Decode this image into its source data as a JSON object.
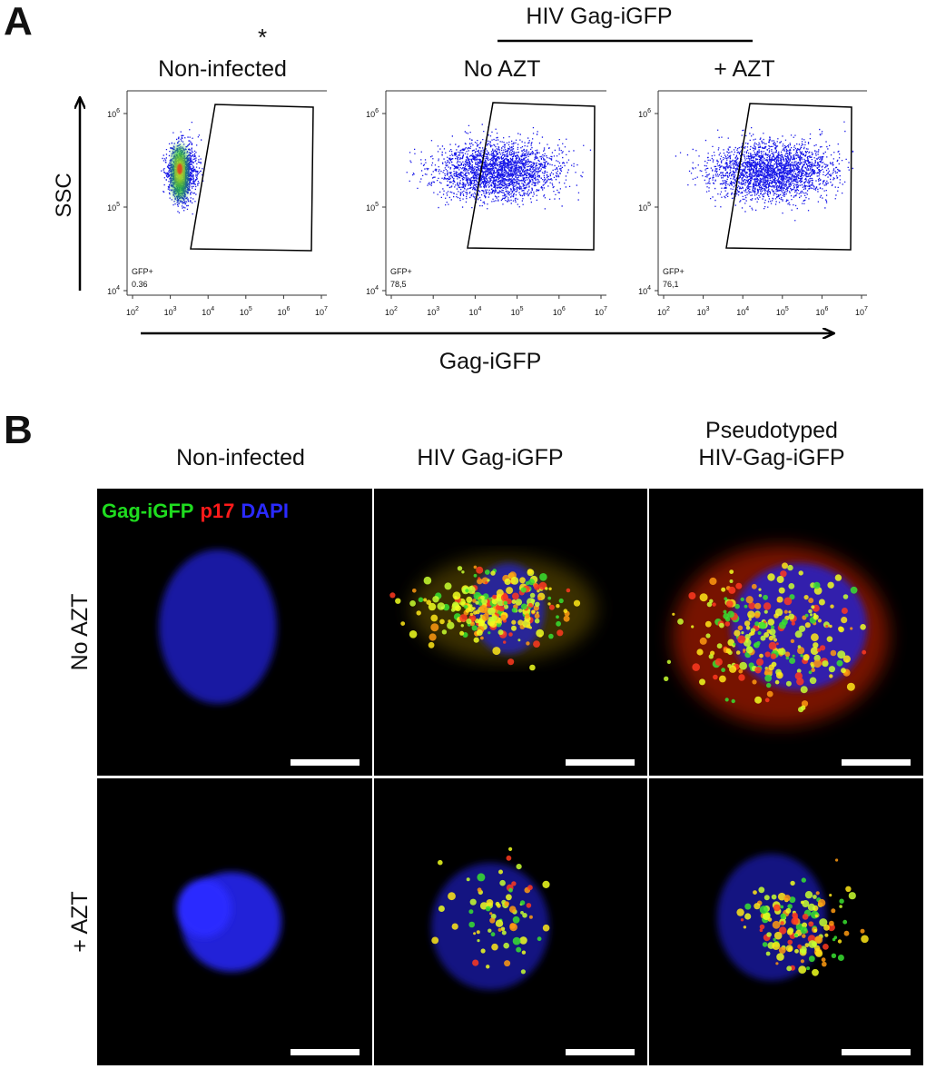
{
  "panel_a": {
    "label": "A",
    "asterisk": "*",
    "group_title": "HIV Gag-iGFP",
    "y_axis_label": "SSC",
    "x_axis_label": "Gag-iGFP",
    "tick_base": "10",
    "x_tick_exponents": [
      "2",
      "3",
      "4",
      "5",
      "6",
      "7"
    ],
    "y_tick_exponents": [
      "6",
      "5",
      "4"
    ],
    "plots": [
      {
        "title": "Non-infected",
        "gate_name": "GFP+",
        "gate_value": "0.36"
      },
      {
        "title": "No AZT",
        "gate_name": "GFP+",
        "gate_value": "78,5"
      },
      {
        "title": "+ AZT",
        "gate_name": "GFP+",
        "gate_value": "76,1"
      }
    ]
  },
  "panel_b": {
    "label": "B",
    "columns": [
      {
        "lines": [
          "Non-infected"
        ]
      },
      {
        "lines": [
          "HIV Gag-iGFP"
        ]
      },
      {
        "lines": [
          "Pseudotyped",
          "HIV-Gag-iGFP"
        ]
      }
    ],
    "legend": [
      {
        "text": "Gag-iGFP",
        "color": "#1fdc1f"
      },
      {
        "text": "p17",
        "color": "#ff1a1a"
      },
      {
        "text": "DAPI",
        "color": "#2a2aff"
      }
    ],
    "rows": [
      "No AZT",
      "+ AZT"
    ]
  }
}
